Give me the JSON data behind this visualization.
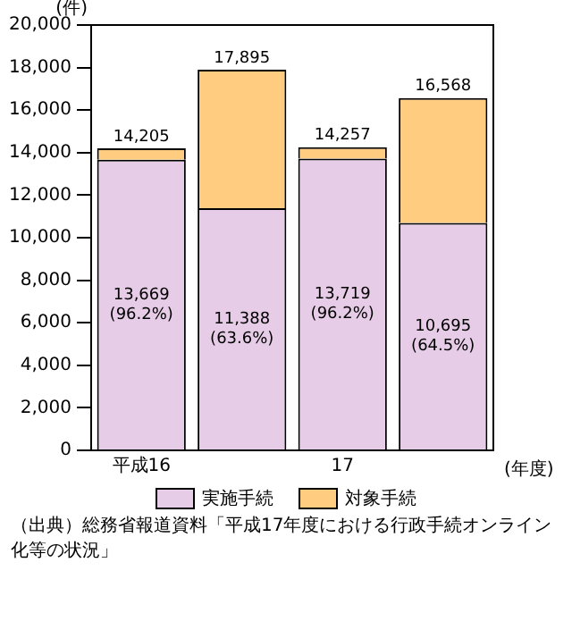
{
  "chart_data": {
    "type": "bar",
    "stacked": true,
    "ylabel": "(件)",
    "xlabel": "(年度)",
    "categories": [
      "平成16",
      null,
      "17",
      null
    ],
    "ylim": [
      0,
      20000
    ],
    "yticks": [
      {
        "value": 0,
        "label": "0"
      },
      {
        "value": 2000,
        "label": "2,000"
      },
      {
        "value": 4000,
        "label": "4,000"
      },
      {
        "value": 6000,
        "label": "6,000"
      },
      {
        "value": 8000,
        "label": "8,000"
      },
      {
        "value": 10000,
        "label": "10,000"
      },
      {
        "value": 12000,
        "label": "12,000"
      },
      {
        "value": 14000,
        "label": "14,000"
      },
      {
        "value": 16000,
        "label": "16,000"
      },
      {
        "value": 18000,
        "label": "18,000"
      },
      {
        "value": 20000,
        "label": "20,000"
      }
    ],
    "series": [
      {
        "name": "実施手続",
        "color": "#e6cce6",
        "values": [
          13669,
          11388,
          13719,
          10695
        ],
        "value_labels": [
          "13,669\n(96.2%)",
          "11,388\n(63.6%)",
          "13,719\n(96.2%)",
          "10,695\n(64.5%)"
        ]
      },
      {
        "name": "対象手続",
        "color": "#ffcc80",
        "values": [
          536,
          6507,
          538,
          5873
        ]
      }
    ],
    "totals": [
      "14,205",
      "17,895",
      "14,257",
      "16,568"
    ],
    "grid": false,
    "legend": "bottom",
    "annotations": [
      "（出典）総務省報道資料「平成17年度における行政手続オンライン化等の状況」"
    ]
  }
}
